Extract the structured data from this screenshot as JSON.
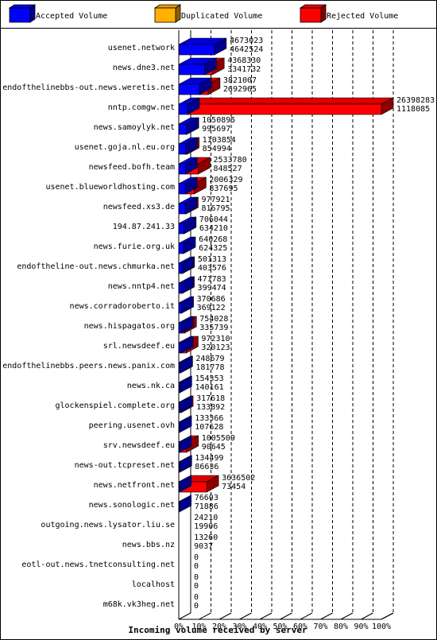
{
  "chart_data": {
    "type": "bar",
    "xlabel": "Incoming volume received by server",
    "xlim": [
      0,
      100
    ],
    "x_ticks": [
      "0%",
      "10%",
      "20%",
      "30%",
      "40%",
      "50%",
      "60%",
      "70%",
      "80%",
      "90%",
      "100%"
    ],
    "legend_position": "top",
    "series": [
      {
        "name": "Accepted Volume",
        "color": "#0000ff"
      },
      {
        "name": "Duplicated Volume",
        "color": "#ffb000"
      },
      {
        "name": "Rejected Volume",
        "color": "#ff0000"
      }
    ],
    "rows": [
      {
        "server": "usenet.network",
        "total": 4673023,
        "accepted": 4642524
      },
      {
        "server": "news.dne3.net",
        "total": 4368330,
        "accepted": 3341732
      },
      {
        "server": "endofthelinebbs-out.news.weretis.net",
        "total": 3821007,
        "accepted": 2692965
      },
      {
        "server": "nntp.comgw.net",
        "total": 26398283,
        "accepted": 1118085
      },
      {
        "server": "news.samoylyk.net",
        "total": 1050895,
        "accepted": 995697
      },
      {
        "server": "usenet.goja.nl.eu.org",
        "total": 1103854,
        "accepted": 854994
      },
      {
        "server": "newsfeed.bofh.team",
        "total": 2533780,
        "accepted": 848527
      },
      {
        "server": "usenet.blueworldhosting.com",
        "total": 2006329,
        "accepted": 837695
      },
      {
        "server": "newsfeed.xs3.de",
        "total": 977921,
        "accepted": 816795
      },
      {
        "server": "194.87.241.33",
        "total": 706044,
        "accepted": 634210
      },
      {
        "server": "news.furie.org.uk",
        "total": 640268,
        "accepted": 624325
      },
      {
        "server": "endoftheline-out.news.chmurka.net",
        "total": 501313,
        "accepted": 403576
      },
      {
        "server": "news.nntp4.net",
        "total": 471783,
        "accepted": 399474
      },
      {
        "server": "news.corradoroberto.it",
        "total": 370686,
        "accepted": 369122
      },
      {
        "server": "news.hispagatos.org",
        "total": 754028,
        "accepted": 335739
      },
      {
        "server": "srl.newsdeef.eu",
        "total": 972310,
        "accepted": 320123
      },
      {
        "server": "endofthelinebbs.peers.news.panix.com",
        "total": 248679,
        "accepted": 181778
      },
      {
        "server": "news.nk.ca",
        "total": 154353,
        "accepted": 140161
      },
      {
        "server": "glockenspiel.complete.org",
        "total": 317618,
        "accepted": 133892
      },
      {
        "server": "peering.usenet.ovh",
        "total": 133366,
        "accepted": 107628
      },
      {
        "server": "srv.newsdeef.eu",
        "total": 1005509,
        "accepted": 90645
      },
      {
        "server": "news-out.tcpreset.net",
        "total": 134499,
        "accepted": 86636
      },
      {
        "server": "news.netfront.net",
        "total": 3636502,
        "accepted": 73454
      },
      {
        "server": "news.sonologic.net",
        "total": 76603,
        "accepted": 71886
      },
      {
        "server": "outgoing.news.lysator.liu.se",
        "total": 24210,
        "accepted": 19906
      },
      {
        "server": "news.bbs.nz",
        "total": 13260,
        "accepted": 9037
      },
      {
        "server": "eotl-out.news.tnetconsulting.net",
        "total": 0,
        "accepted": 0
      },
      {
        "server": "localhost",
        "total": 0,
        "accepted": 0
      },
      {
        "server": "m68k.vk3heg.net",
        "total": 0,
        "accepted": 0
      }
    ]
  }
}
